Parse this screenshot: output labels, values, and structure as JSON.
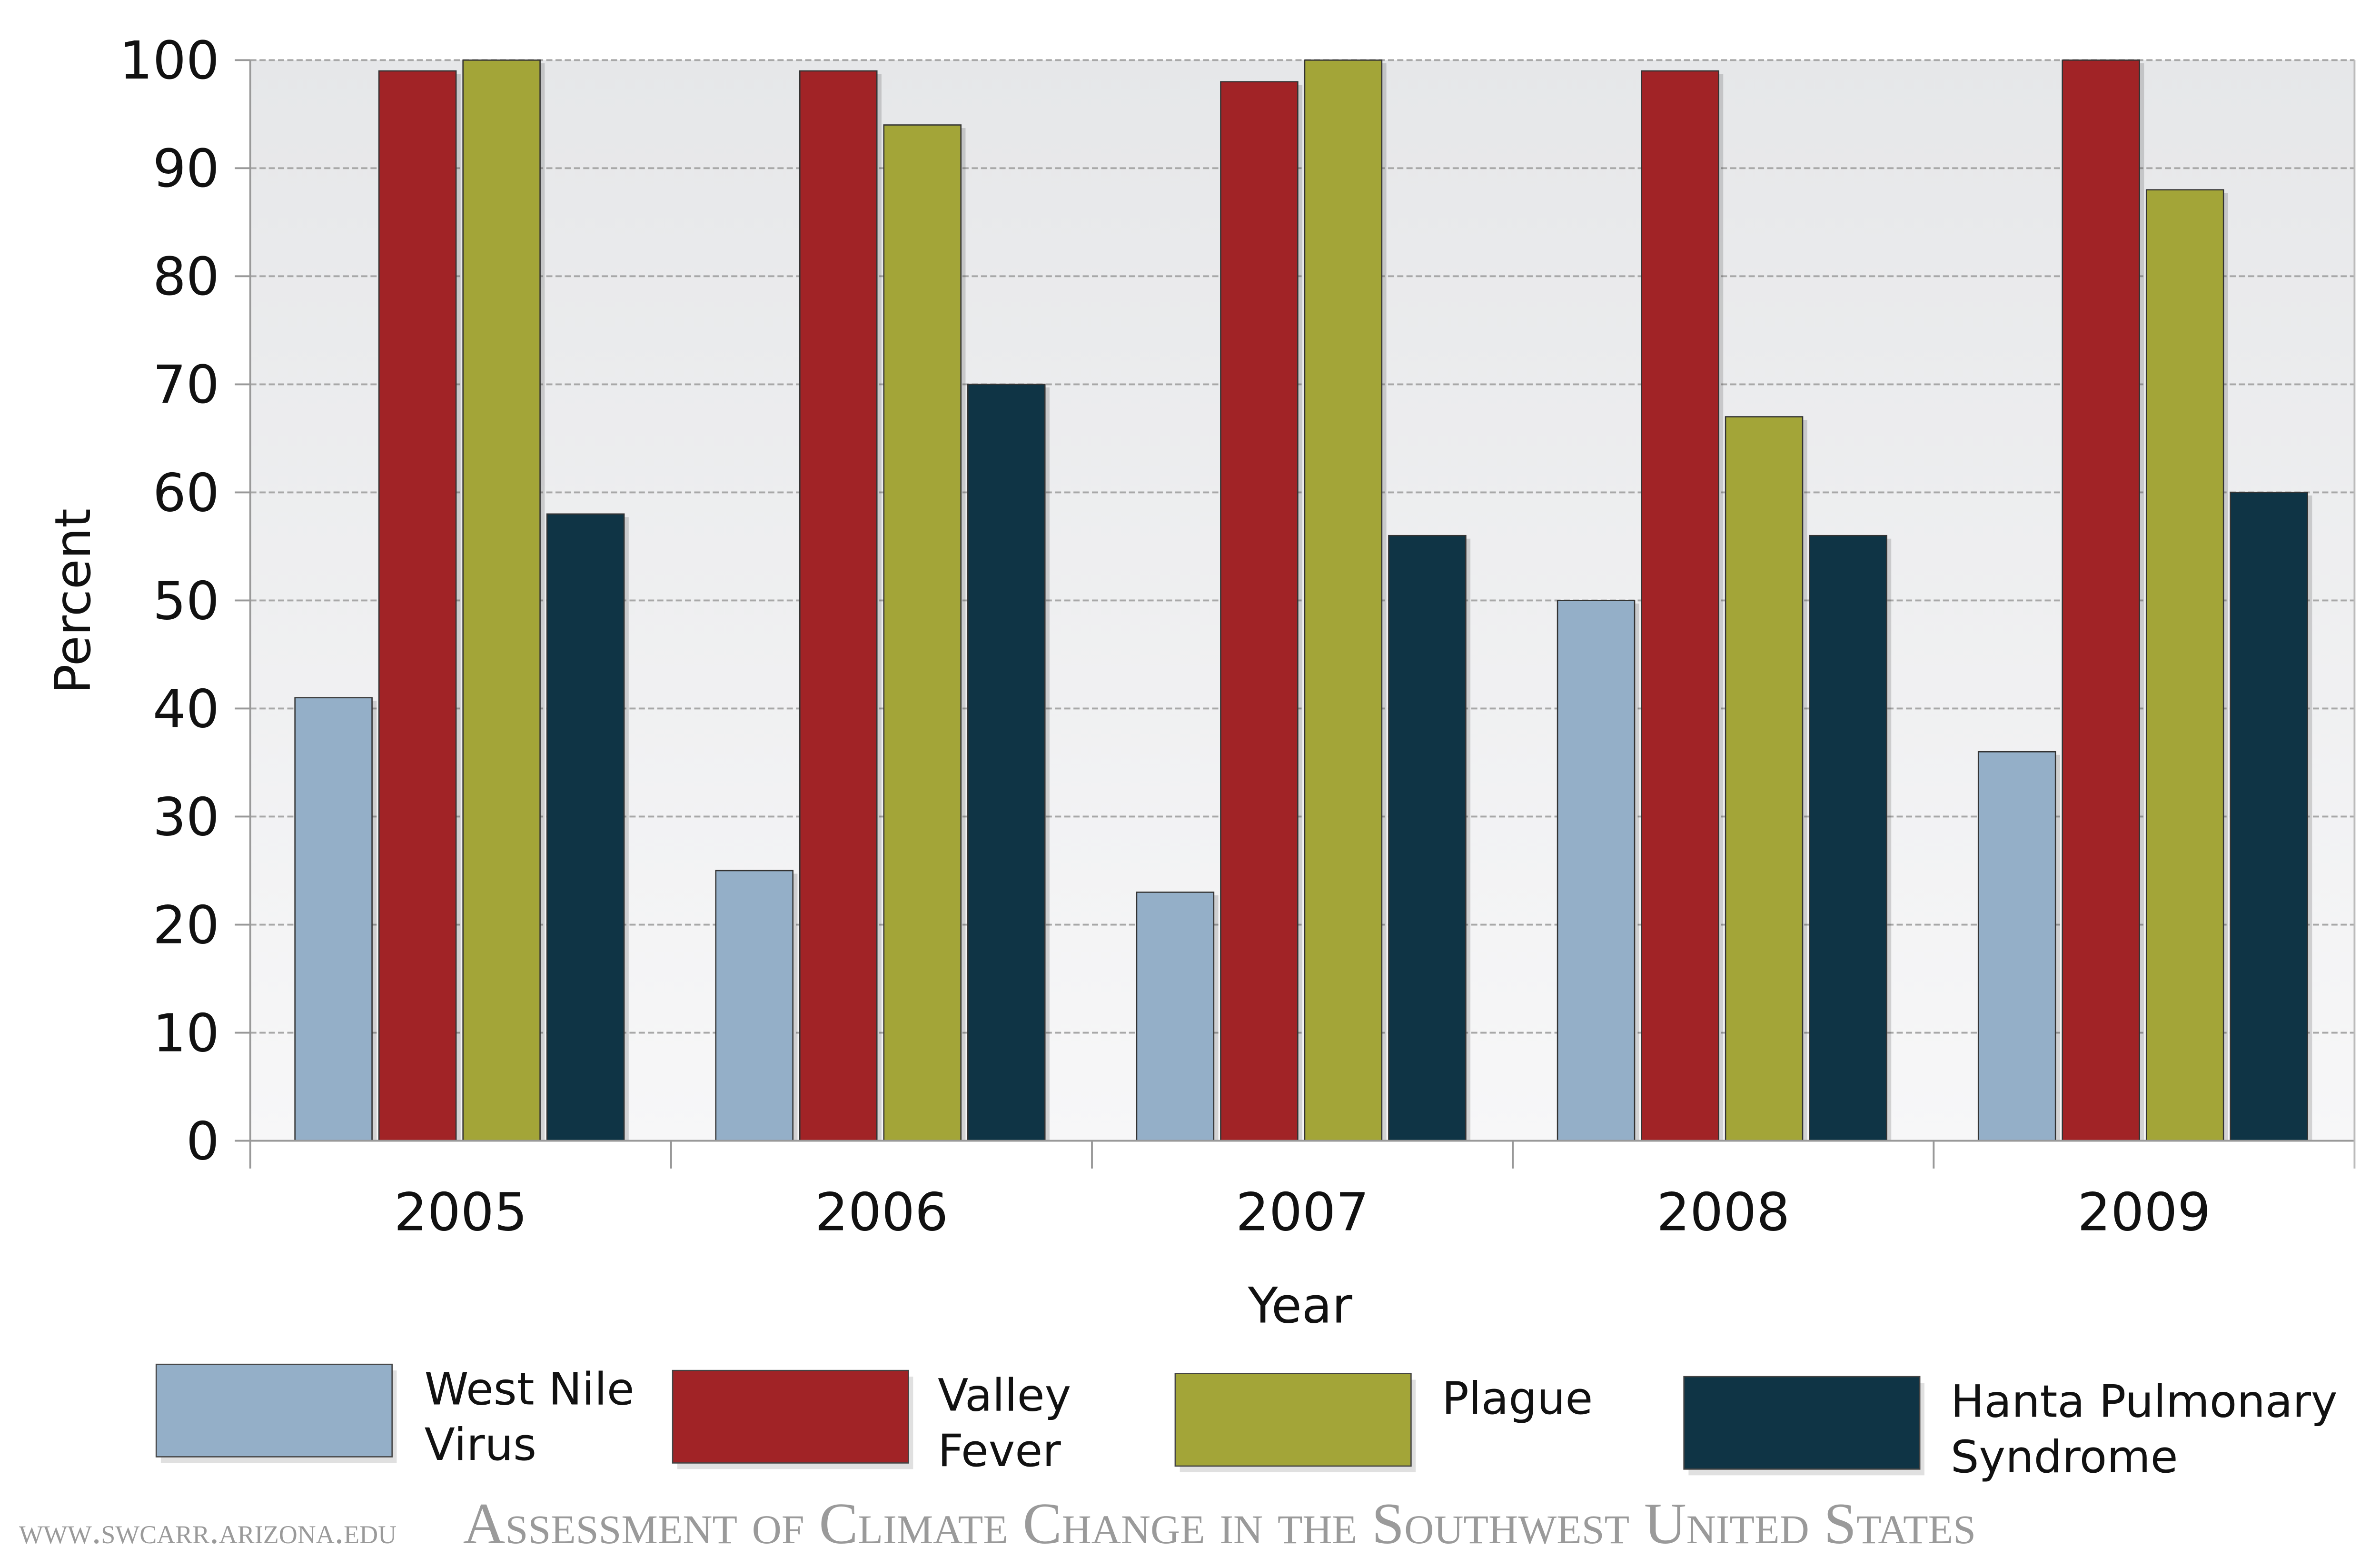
{
  "chart_data": {
    "type": "bar",
    "title": "",
    "xlabel": "Year",
    "ylabel": "Percent",
    "ylim": [
      0,
      100
    ],
    "yticks": [
      0,
      10,
      20,
      30,
      40,
      50,
      60,
      70,
      80,
      90,
      100
    ],
    "grid": true,
    "legend_placement": "bottom",
    "categories": [
      "2005",
      "2006",
      "2007",
      "2008",
      "2009"
    ],
    "series": [
      {
        "name": "West Nile Virus",
        "label_lines": [
          "West Nile",
          "Virus"
        ],
        "color": "#94afc8",
        "values": [
          41,
          25,
          23,
          50,
          36
        ]
      },
      {
        "name": "Valley Fever",
        "label_lines": [
          "Valley",
          "Fever"
        ],
        "color": "#a12326",
        "values": [
          99,
          99,
          98,
          99,
          100
        ]
      },
      {
        "name": "Plague",
        "label_lines": [
          "Plague"
        ],
        "color": "#a3a538",
        "values": [
          100,
          94,
          100,
          67,
          88
        ]
      },
      {
        "name": "Hanta Pulmonary Syndrome",
        "label_lines": [
          "Hanta Pulmonary",
          "Syndrome"
        ],
        "color": "#0f3445",
        "values": [
          58,
          70,
          56,
          56,
          60
        ]
      }
    ]
  },
  "watermark": {
    "title": "Assessment of Climate Change in the Southwest United States",
    "url": "www.swcarr.arizona.edu"
  }
}
